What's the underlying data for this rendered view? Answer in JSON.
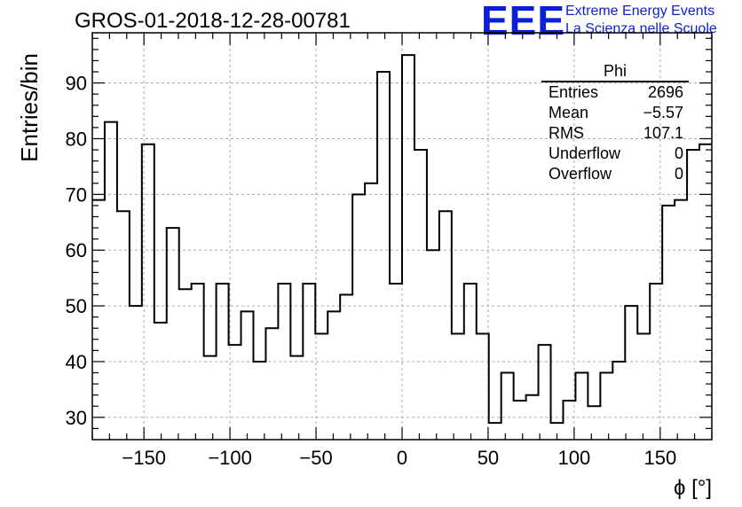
{
  "header": {
    "title": "GROS-01-2018-12-28-00781",
    "logo_text": "EEE",
    "logo_line1": "Extreme Energy Events",
    "logo_line2": "La Scienza nelle Scuole"
  },
  "stats": {
    "title": "Phi",
    "rows": [
      {
        "label": "Entries",
        "value": "2696"
      },
      {
        "label": "Mean",
        "value": "−5.57"
      },
      {
        "label": "RMS",
        "value": "107.1"
      },
      {
        "label": "Underflow",
        "value": "0"
      },
      {
        "label": "Overflow",
        "value": "0"
      }
    ]
  },
  "chart_data": {
    "type": "bar",
    "histogram": "step",
    "title": "GROS-01-2018-12-28-00781",
    "xlabel": "ϕ [°]",
    "ylabel": "Entries/bin",
    "xlim": [
      -180,
      180
    ],
    "ylim": [
      26,
      99
    ],
    "grid": true,
    "bin_width": 7.2,
    "bin_edges_start": -180,
    "values": [
      69,
      83,
      67,
      50,
      79,
      47,
      64,
      53,
      54,
      41,
      54,
      43,
      49,
      40,
      46,
      54,
      41,
      54,
      45,
      49,
      52,
      70,
      72,
      92,
      54,
      95,
      78,
      60,
      67,
      45,
      54,
      45,
      29,
      38,
      33,
      34,
      43,
      29,
      33,
      38,
      32,
      38,
      40,
      50,
      45,
      54,
      68,
      69,
      78,
      79
    ],
    "xticks": [
      -150,
      -100,
      -50,
      0,
      50,
      100,
      150
    ],
    "xtick_labels": [
      "−150",
      "−100",
      "−50",
      "0",
      "50",
      "100",
      "150"
    ],
    "yticks": [
      30,
      40,
      50,
      60,
      70,
      80,
      90
    ],
    "ytick_labels": [
      "30",
      "40",
      "50",
      "60",
      "70",
      "80",
      "90"
    ],
    "legend_position": "top-right"
  }
}
